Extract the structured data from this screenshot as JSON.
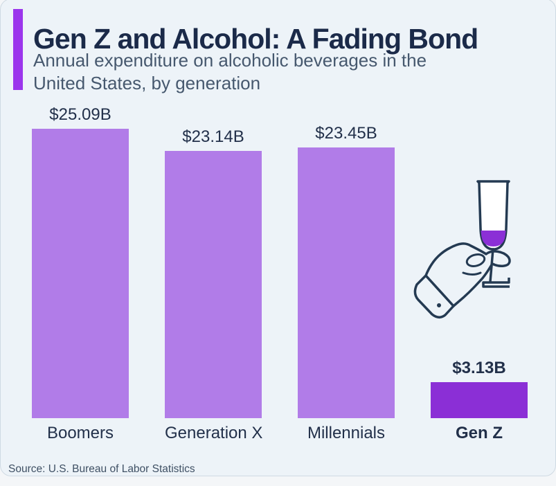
{
  "header": {
    "title": "Gen Z and Alcohol: A Fading Bond",
    "subtitle": "Annual expenditure on alcoholic beverages in the United States, by generation"
  },
  "footer": {
    "source": "Source: U.S. Bureau of Labor Statistics"
  },
  "colors": {
    "accent_bar": "#9b35ec",
    "title_text": "#1b2a49",
    "subtitle_text": "#46586e",
    "label_text": "#22304a",
    "source_text": "#3f5064",
    "card_background": "#edf3f8",
    "bar_default": "#b17ce8",
    "bar_highlight": "#8b2fd6",
    "illustration_outline": "#243a52",
    "illustration_liquid": "#8b2fd6"
  },
  "icons": {
    "illustration": "hand-holding-champagne-flute"
  },
  "chart_data": {
    "type": "bar",
    "title": "Gen Z and Alcohol: A Fading Bond",
    "subtitle": "Annual expenditure on alcoholic beverages in the United States, by generation",
    "categories": [
      "Boomers",
      "Generation X",
      "Millennials",
      "Gen Z"
    ],
    "values": [
      25.09,
      23.14,
      23.45,
      3.13
    ],
    "value_labels": [
      "$25.09B",
      "$23.14B",
      "$23.45B",
      "$3.13B"
    ],
    "unit": "billion USD",
    "ylim": [
      0,
      27
    ],
    "grid": false,
    "legend": "none",
    "bar_colors": [
      "#b17ce8",
      "#b17ce8",
      "#b17ce8",
      "#8b2fd6"
    ],
    "emphasized": [
      false,
      false,
      false,
      true
    ],
    "source": "U.S. Bureau of Labor Statistics"
  }
}
